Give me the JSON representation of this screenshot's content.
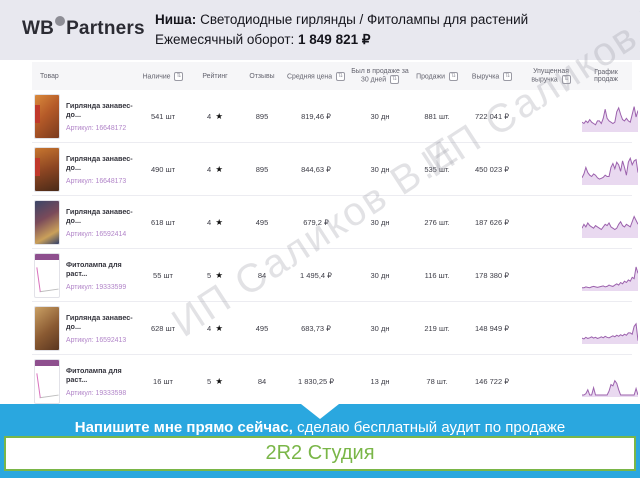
{
  "header": {
    "logo_wb": "WB",
    "logo_partners": "Partners",
    "niche_label": "Ниша:",
    "niche_value": " Светодиодные гирлянды / Фитолампы для растений",
    "turnover_label": "Ежемесячный оборот: ",
    "turnover_value": "1 849 821 ₽"
  },
  "table": {
    "columns": [
      {
        "label": "Товар"
      },
      {
        "label": "Наличие"
      },
      {
        "label": "Рейтинг"
      },
      {
        "label": "Отзывы"
      },
      {
        "label": "Средняя цена"
      },
      {
        "label": "Был в продаже за 30 дней"
      },
      {
        "label": "Продажи"
      },
      {
        "label": "Выручка"
      },
      {
        "label": "Упущенная выручка"
      },
      {
        "label": "График продаж"
      }
    ],
    "sort_icon": "⇅",
    "article_label": "Артикул: ",
    "rows": [
      {
        "name": "Гирлянда занавес-до...",
        "article": "16648172",
        "stock": "541 шт",
        "rating": "4",
        "reviews": "895",
        "avg_price": "819,46 ₽",
        "days": "30 дн",
        "sales": "881 шт.",
        "revenue": "722 041 ₽",
        "lost_revenue": "",
        "spark": [
          30,
          25,
          35,
          28,
          40,
          30,
          25,
          20,
          35,
          35,
          25,
          45,
          80,
          45,
          35,
          30,
          25,
          30,
          70,
          85,
          60,
          40,
          35,
          45,
          35,
          30,
          60,
          90,
          50,
          75
        ]
      },
      {
        "name": "Гирлянда занавес-до...",
        "article": "16648173",
        "stock": "490 шт",
        "rating": "4",
        "reviews": "895",
        "avg_price": "844,63 ₽",
        "days": "30 дн",
        "sales": "535 шт.",
        "revenue": "450 023 ₽",
        "lost_revenue": "",
        "spark": [
          20,
          35,
          60,
          40,
          30,
          25,
          35,
          30,
          20,
          15,
          18,
          22,
          30,
          25,
          25,
          60,
          75,
          55,
          80,
          70,
          45,
          85,
          60,
          30,
          80,
          95,
          70,
          85,
          90,
          40
        ]
      },
      {
        "name": "Гирлянда занавес-до...",
        "article": "16592414",
        "stock": "618 шт",
        "rating": "4",
        "reviews": "495",
        "avg_price": "679,2 ₽",
        "days": "30 дн",
        "sales": "276 шт.",
        "revenue": "187 626 ₽",
        "lost_revenue": "",
        "spark": [
          30,
          45,
          35,
          50,
          40,
          35,
          30,
          40,
          35,
          30,
          25,
          35,
          45,
          40,
          50,
          35,
          30,
          25,
          30,
          45,
          55,
          40,
          35,
          45,
          40,
          35,
          55,
          75,
          60,
          45
        ]
      },
      {
        "name": "Фитолампа для раст...",
        "article": "19333599",
        "stock": "55 шт",
        "rating": "5",
        "reviews": "84",
        "avg_price": "1 495,4 ₽",
        "days": "30 дн",
        "sales": "116 шт.",
        "revenue": "178 380 ₽",
        "lost_revenue": "",
        "spark": [
          5,
          5,
          8,
          6,
          5,
          8,
          10,
          8,
          6,
          8,
          10,
          12,
          8,
          10,
          15,
          12,
          10,
          15,
          20,
          15,
          25,
          20,
          30,
          25,
          35,
          30,
          45,
          40,
          85,
          60
        ]
      },
      {
        "name": "Гирлянда занавес-до...",
        "article": "16592413",
        "stock": "628 шт",
        "rating": "4",
        "reviews": "495",
        "avg_price": "683,73 ₽",
        "days": "30 дн",
        "sales": "219 шт.",
        "revenue": "148 949 ₽",
        "lost_revenue": "",
        "spark": [
          15,
          12,
          18,
          14,
          16,
          20,
          15,
          18,
          14,
          16,
          20,
          16,
          22,
          18,
          16,
          20,
          24,
          20,
          26,
          22,
          28,
          24,
          30,
          26,
          35,
          35,
          30,
          60,
          70,
          5
        ]
      },
      {
        "name": "Фитолампа для раст...",
        "article": "19333598",
        "stock": "16 шт",
        "rating": "5",
        "reviews": "84",
        "avg_price": "1 830,25 ₽",
        "days": "13 дн",
        "sales": "78 шт.",
        "revenue": "146 722 ₽",
        "lost_revenue": "",
        "spark": [
          0,
          0,
          5,
          20,
          0,
          0,
          28,
          0,
          0,
          0,
          0,
          0,
          0,
          0,
          15,
          40,
          35,
          55,
          45,
          20,
          0,
          0,
          0,
          0,
          0,
          0,
          0,
          0,
          25,
          0
        ]
      }
    ]
  },
  "watermark": {
    "text": "ИП Саликов В.Е"
  },
  "banner": {
    "bold": "Напишите мне прямо сейчас,",
    "regular": " сделаю бесплатный аудит по продаже"
  },
  "footer_box": {
    "text": "2R2 Студия"
  },
  "colors": {
    "header_bg": "#e8e8ef",
    "banner_blue": "#2aa7df",
    "footer_green": "#7ab648",
    "article_purple": "#b184c8",
    "spark_stroke": "#9c62ad",
    "spark_fill": "#e9d9f0"
  },
  "chart_data": {
    "type": "area",
    "note": "sparklines per table row, 30-day sales dynamics, values are relative 0-100",
    "series_source": "table.rows[].spark"
  }
}
